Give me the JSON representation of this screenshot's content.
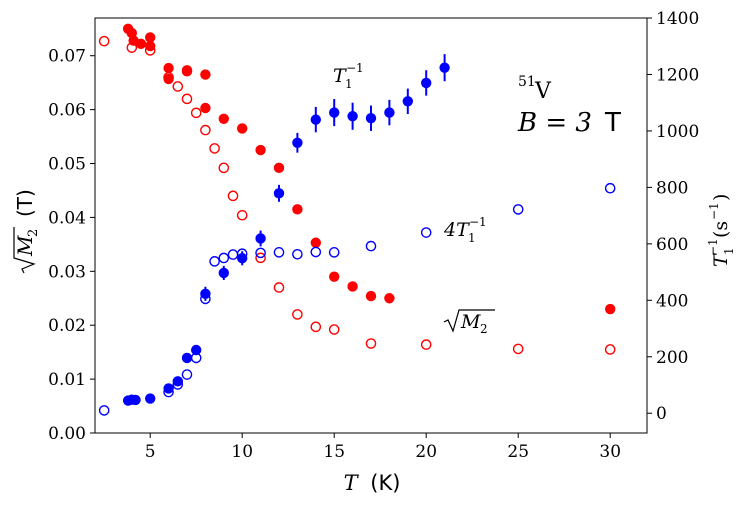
{
  "chart_data": {
    "type": "scatter",
    "x_axis": {
      "label_symbol": "T",
      "label_unit": "(K)",
      "range": [
        2,
        32
      ],
      "ticks": [
        5,
        10,
        15,
        20,
        25,
        30
      ]
    },
    "y_left": {
      "label_unit": "(T)",
      "range": [
        0,
        0.077
      ],
      "ticks": [
        0.0,
        0.01,
        0.02,
        0.03,
        0.04,
        0.05,
        0.06,
        0.07
      ]
    },
    "y_right": {
      "label_unit": "(s",
      "range": [
        -70,
        1400
      ],
      "ticks": [
        0,
        200,
        400,
        600,
        800,
        1000,
        1200,
        1400
      ]
    },
    "annotations": {
      "nucleus_mass": "51",
      "nucleus_symbol": "V",
      "field_lhs": "B = 3",
      "field_unit": "T",
      "t1_label_base": "T",
      "four_t1_label_base": "4T"
    },
    "colors": {
      "red": "#ff0000",
      "blue": "#0000ff"
    },
    "series": [
      {
        "axis": "left",
        "color": "red",
        "filled": true,
        "points": [
          [
            3.8,
            0.075
          ],
          [
            4.0,
            0.0742
          ],
          [
            4.1,
            0.0728
          ],
          [
            4.5,
            0.0722
          ],
          [
            5.0,
            0.0734
          ],
          [
            5.0,
            0.0718
          ],
          [
            6.0,
            0.0677
          ],
          [
            6.0,
            0.0657
          ],
          [
            7.0,
            0.0671
          ],
          [
            7.0,
            0.0673
          ],
          [
            8.0,
            0.0665
          ],
          [
            8.0,
            0.0603
          ],
          [
            9.0,
            0.0583
          ],
          [
            10.0,
            0.0565
          ],
          [
            11.0,
            0.0525
          ],
          [
            12.0,
            0.0492
          ],
          [
            13.0,
            0.0415
          ],
          [
            14.0,
            0.0353
          ],
          [
            15.0,
            0.029
          ],
          [
            16.0,
            0.0272
          ],
          [
            17.0,
            0.0254
          ],
          [
            18.0,
            0.025
          ],
          [
            30.0,
            0.023
          ]
        ]
      },
      {
        "axis": "left",
        "color": "red",
        "filled": false,
        "points": [
          [
            2.5,
            0.0727
          ],
          [
            4.0,
            0.0715
          ],
          [
            5.0,
            0.071
          ],
          [
            6.0,
            0.066
          ],
          [
            6.5,
            0.0643
          ],
          [
            7.0,
            0.062
          ],
          [
            7.5,
            0.0594
          ],
          [
            8.0,
            0.0562
          ],
          [
            8.5,
            0.0528
          ],
          [
            9.0,
            0.0492
          ],
          [
            9.5,
            0.044
          ],
          [
            10.0,
            0.0404
          ],
          [
            11.0,
            0.0325
          ],
          [
            12.0,
            0.027
          ],
          [
            13.0,
            0.022
          ],
          [
            14.0,
            0.0197
          ],
          [
            15.0,
            0.0192
          ],
          [
            17.0,
            0.0166
          ],
          [
            20.0,
            0.0164
          ],
          [
            25.0,
            0.0156
          ],
          [
            30.0,
            0.0155
          ]
        ]
      },
      {
        "axis": "right",
        "color": "blue",
        "filled": true,
        "points": [
          [
            3.8,
            45,
            0
          ],
          [
            4.0,
            48,
            0
          ],
          [
            4.2,
            47,
            0
          ],
          [
            5.0,
            52,
            0
          ],
          [
            6.0,
            88,
            0
          ],
          [
            6.5,
            113,
            0
          ],
          [
            7.0,
            196,
            0
          ],
          [
            7.5,
            224,
            0
          ],
          [
            8.0,
            423,
            25
          ],
          [
            9.0,
            497,
            25
          ],
          [
            10.0,
            549,
            25
          ],
          [
            11.0,
            619,
            28
          ],
          [
            12.0,
            779,
            30
          ],
          [
            13.0,
            958,
            35
          ],
          [
            14.0,
            1040,
            45
          ],
          [
            15.0,
            1065,
            48
          ],
          [
            16.0,
            1052,
            48
          ],
          [
            17.0,
            1045,
            45
          ],
          [
            18.0,
            1065,
            45
          ],
          [
            19.0,
            1105,
            45
          ],
          [
            20.0,
            1170,
            45
          ],
          [
            21.0,
            1224,
            48
          ]
        ]
      },
      {
        "axis": "right",
        "color": "blue",
        "filled": false,
        "points": [
          [
            2.5,
            10
          ],
          [
            6.0,
            75
          ],
          [
            6.5,
            102
          ],
          [
            7.0,
            137
          ],
          [
            7.5,
            196
          ],
          [
            8.0,
            405
          ],
          [
            8.5,
            538
          ],
          [
            9.0,
            550
          ],
          [
            9.5,
            562
          ],
          [
            10.0,
            565
          ],
          [
            11.0,
            568
          ],
          [
            12.0,
            570
          ],
          [
            13.0,
            563
          ],
          [
            14.0,
            571
          ],
          [
            15.0,
            570
          ],
          [
            17.0,
            592
          ],
          [
            20.0,
            640
          ],
          [
            25.0,
            722
          ],
          [
            30.0,
            797
          ]
        ]
      }
    ]
  }
}
